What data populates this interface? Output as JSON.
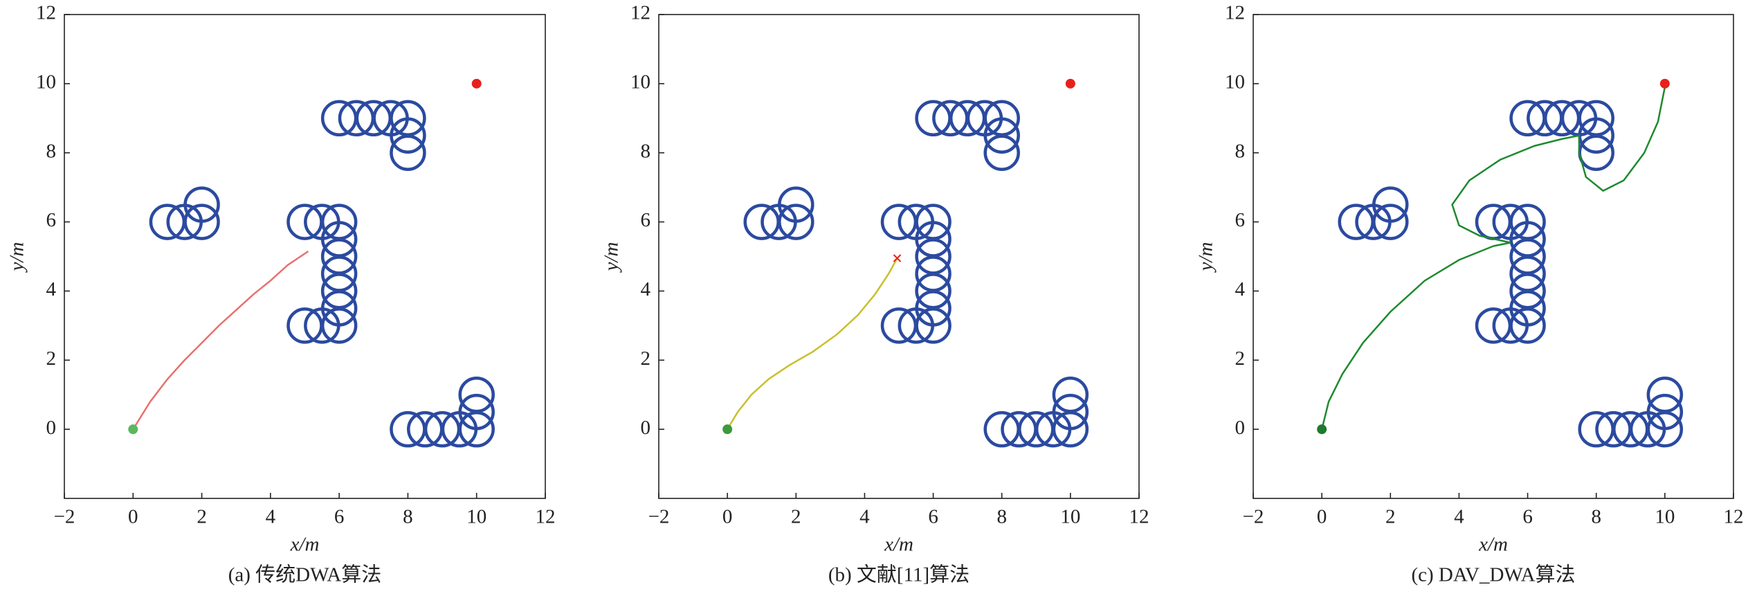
{
  "chart_data": [
    {
      "type": "line",
      "caption": "(a) 传统DWA算法",
      "xlabel": "x/m",
      "ylabel": "y/m",
      "xlim": [
        -2,
        12
      ],
      "ylim": [
        -2,
        12
      ],
      "xticks": [
        {
          "value": -2,
          "label": "−2"
        },
        0,
        2,
        4,
        6,
        8,
        10,
        12
      ],
      "yticks": [
        0,
        2,
        4,
        6,
        8,
        10,
        12
      ],
      "series": [
        {
          "style": "circle",
          "color": "#2b4aa0",
          "x": [
            1,
            1.5,
            2,
            2,
            6,
            6.5,
            7,
            7.5,
            8,
            8,
            8,
            5,
            5.5,
            6,
            6,
            6,
            6,
            6,
            6,
            6,
            5.5,
            5,
            8,
            8.5,
            9,
            9.5,
            10,
            10,
            10
          ],
          "values": [
            6,
            6,
            6,
            6.5,
            9,
            9,
            9,
            9,
            9,
            8.5,
            8,
            6,
            6,
            6,
            5.5,
            5,
            4.5,
            4,
            3.5,
            3,
            3,
            3,
            0,
            0,
            0,
            0,
            0,
            0.5,
            1
          ]
        },
        {
          "style": "line",
          "color": "#e8706e",
          "x": [
            0,
            0.5,
            1,
            1.5,
            2,
            2.5,
            3,
            3.5,
            4,
            4.5,
            5.1
          ],
          "values": [
            0,
            0.8,
            1.45,
            2.0,
            2.5,
            3.0,
            3.45,
            3.9,
            4.3,
            4.75,
            5.15
          ]
        },
        {
          "style": "dot",
          "color": "#5cb85c",
          "x": [
            0
          ],
          "values": [
            0
          ]
        },
        {
          "style": "dot",
          "color": "#e8201c",
          "x": [
            10
          ],
          "values": [
            10
          ]
        }
      ]
    },
    {
      "type": "line",
      "caption": "(b) 文献[11]算法",
      "xlabel": "x/m",
      "ylabel": "y/m",
      "xlim": [
        -2,
        12
      ],
      "ylim": [
        -2,
        12
      ],
      "xticks": [
        {
          "value": -2,
          "label": "−2"
        },
        0,
        2,
        4,
        6,
        8,
        10,
        12
      ],
      "yticks": [
        0,
        2,
        4,
        6,
        8,
        10,
        12
      ],
      "series": [
        {
          "style": "circle",
          "color": "#2b4aa0",
          "x": [
            1,
            1.5,
            2,
            2,
            6,
            6.5,
            7,
            7.5,
            8,
            8,
            8,
            5,
            5.5,
            6,
            6,
            6,
            6,
            6,
            6,
            6,
            5.5,
            5,
            8,
            8.5,
            9,
            9.5,
            10,
            10,
            10
          ],
          "values": [
            6,
            6,
            6,
            6.5,
            9,
            9,
            9,
            9,
            9,
            8.5,
            8,
            6,
            6,
            6,
            5.5,
            5,
            4.5,
            4,
            3.5,
            3,
            3,
            3,
            0,
            0,
            0,
            0,
            0,
            0.5,
            1
          ]
        },
        {
          "style": "line",
          "color": "#c8c02a",
          "x": [
            0,
            0.3,
            0.7,
            1.2,
            1.8,
            2.5,
            3.2,
            3.8,
            4.3,
            4.7,
            4.95
          ],
          "values": [
            0,
            0.5,
            1.0,
            1.45,
            1.85,
            2.25,
            2.75,
            3.3,
            3.9,
            4.5,
            4.95
          ]
        },
        {
          "style": "dot",
          "color": "#3c9a3c",
          "x": [
            0
          ],
          "values": [
            0
          ]
        },
        {
          "style": "cross",
          "color": "#e8201c",
          "x": [
            4.95
          ],
          "values": [
            4.95
          ]
        },
        {
          "style": "dot",
          "color": "#e8201c",
          "x": [
            10
          ],
          "values": [
            10
          ]
        }
      ]
    },
    {
      "type": "line",
      "caption": "(c) DAV_DWA算法",
      "xlabel": "x/m",
      "ylabel": "y/m",
      "xlim": [
        -2,
        12
      ],
      "ylim": [
        -2,
        12
      ],
      "xticks": [
        {
          "value": -2,
          "label": "−2"
        },
        0,
        2,
        4,
        6,
        8,
        10,
        12
      ],
      "yticks": [
        0,
        2,
        4,
        6,
        8,
        10,
        12
      ],
      "series": [
        {
          "style": "circle",
          "color": "#2b4aa0",
          "x": [
            1,
            1.5,
            2,
            2,
            6,
            6.5,
            7,
            7.5,
            8,
            8,
            8,
            5,
            5.5,
            6,
            6,
            6,
            6,
            6,
            6,
            6,
            5.5,
            5,
            8,
            8.5,
            9,
            9.5,
            10,
            10,
            10
          ],
          "values": [
            6,
            6,
            6,
            6.5,
            9,
            9,
            9,
            9,
            9,
            8.5,
            8,
            6,
            6,
            6,
            5.5,
            5,
            4.5,
            4,
            3.5,
            3,
            3,
            3,
            0,
            0,
            0,
            0,
            0,
            0.5,
            1
          ]
        },
        {
          "style": "line",
          "color": "#1e8a2e",
          "x": [
            0,
            0.2,
            0.6,
            1.2,
            2,
            3,
            4,
            5,
            5.5,
            4.6,
            4,
            3.8,
            4.3,
            5.2,
            6.2,
            7,
            7.5,
            7.5,
            7.7,
            8.2,
            8.8,
            9.4,
            9.8,
            10
          ],
          "values": [
            0,
            0.8,
            1.6,
            2.5,
            3.4,
            4.3,
            4.9,
            5.3,
            5.4,
            5.6,
            5.9,
            6.5,
            7.2,
            7.8,
            8.2,
            8.4,
            8.5,
            8.0,
            7.3,
            6.9,
            7.2,
            8.0,
            8.9,
            9.9
          ]
        },
        {
          "style": "dot",
          "color": "#1e7a2e",
          "x": [
            0
          ],
          "values": [
            0
          ]
        },
        {
          "style": "dot",
          "color": "#e8201c",
          "x": [
            10
          ],
          "values": [
            10
          ]
        }
      ]
    }
  ]
}
